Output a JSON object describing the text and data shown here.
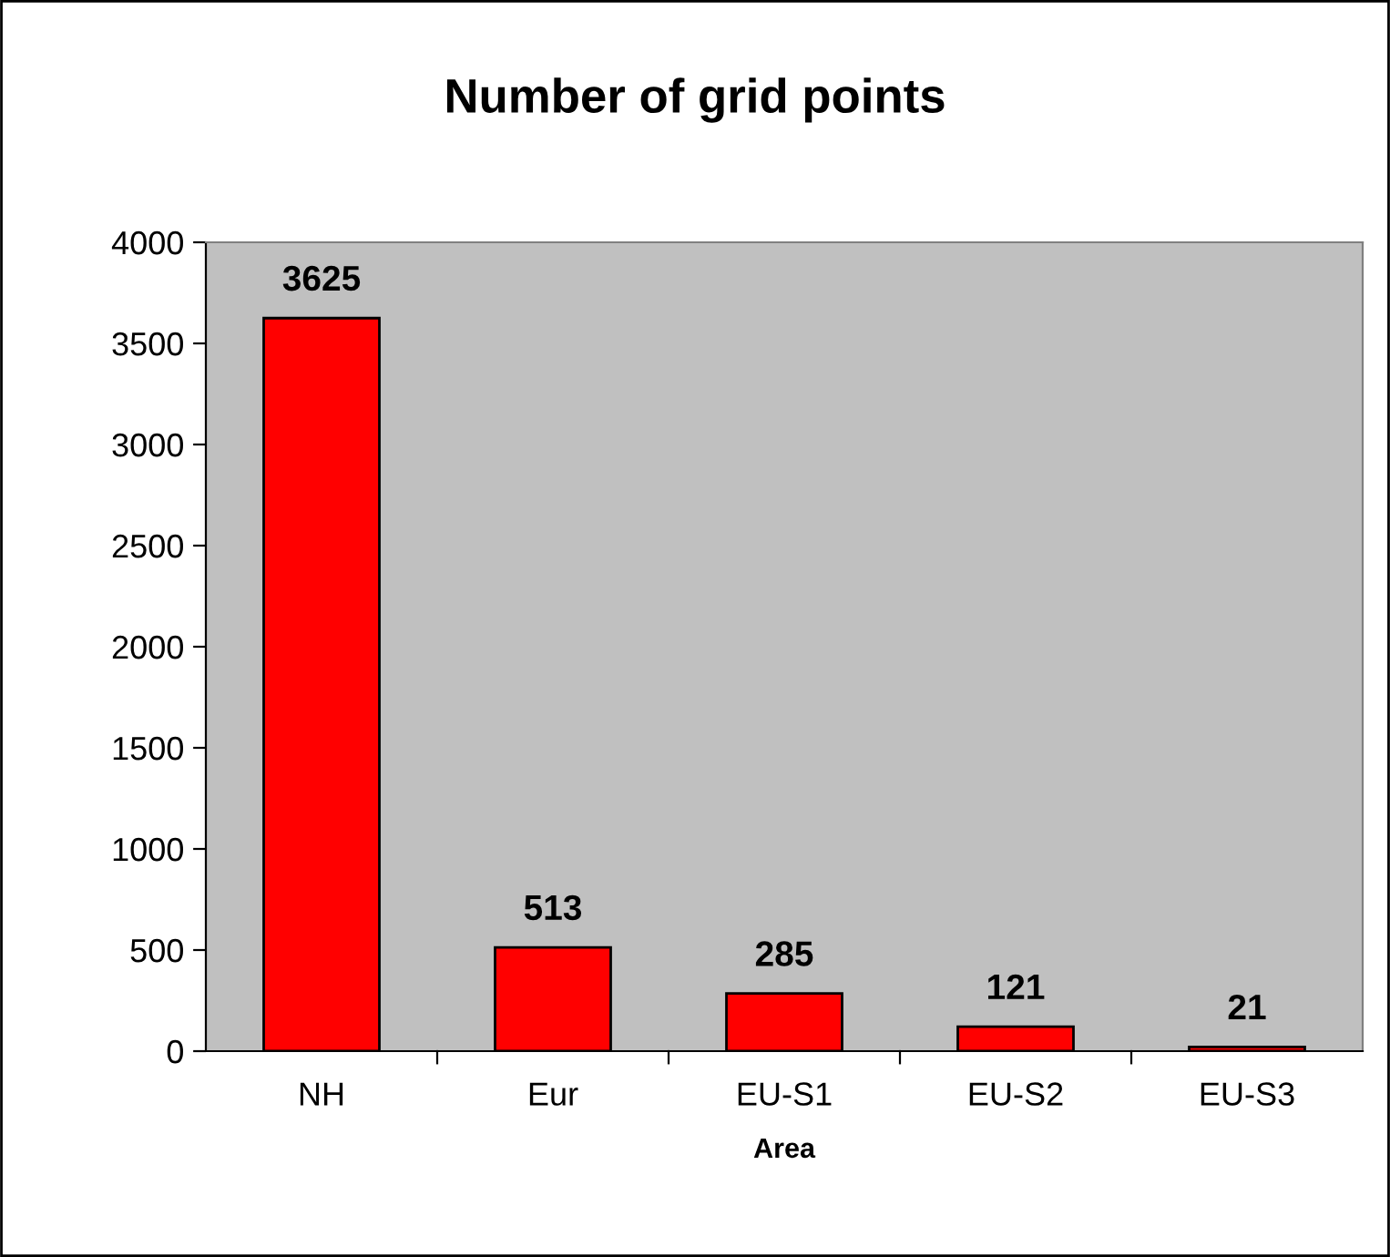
{
  "chart_data": {
    "type": "bar",
    "title": "Number of grid points",
    "xlabel": "Area",
    "categories": [
      "NH",
      "Eur",
      "EU-S1",
      "EU-S2",
      "EU-S3"
    ],
    "values": [
      3625,
      513,
      285,
      121,
      21
    ],
    "color": "#ff0000",
    "ylim": [
      0,
      4000
    ],
    "yticks": [
      0,
      500,
      1000,
      1500,
      2000,
      2500,
      3000,
      3500,
      4000
    ],
    "data_labels": true,
    "grid": false,
    "legend": false
  }
}
